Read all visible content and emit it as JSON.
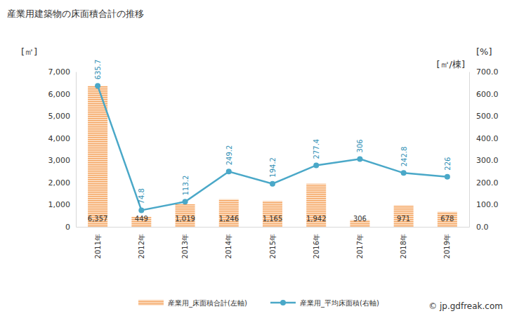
{
  "chart_data": {
    "type": "bar",
    "title": "産業用建築物の床面積合計の推移",
    "y_label": "[㎡]",
    "y2_labels": [
      "[%]",
      "[㎡/棟]"
    ],
    "annotations": [
      "© jp.gdfreak.com"
    ],
    "categories": [
      "2011年",
      "2012年",
      "2013年",
      "2014年",
      "2015年",
      "2016年",
      "2017年",
      "2018年",
      "2019年"
    ],
    "series": [
      {
        "name": "産業用_床面積合計(左軸)",
        "type": "bar",
        "color": "#f4a460",
        "axis": "y",
        "values": [
          6357,
          449,
          1019,
          1246,
          1165,
          1942,
          306,
          971,
          678
        ],
        "value_labels": [
          "6,357",
          "449",
          "1,019",
          "1,246",
          "1,165",
          "1,942",
          "306",
          "971",
          "678"
        ]
      },
      {
        "name": "産業用_平均床面積(右軸)",
        "type": "line",
        "color": "#4aa8c8",
        "axis": "y2",
        "marker": "circle",
        "values": [
          635.7,
          74.8,
          113.2,
          249.2,
          194.2,
          277.4,
          306,
          242.8,
          226
        ]
      }
    ],
    "ylim": [
      0,
      7000
    ],
    "yticks": [
      0,
      {
        "value": 1000,
        "label": "1,000"
      },
      {
        "value": 2000,
        "label": "2,000"
      },
      {
        "value": 3000,
        "label": "3,000"
      },
      {
        "value": 4000,
        "label": "4,000"
      },
      {
        "value": 5000,
        "label": "5,000"
      },
      {
        "value": 6000,
        "label": "6,000"
      },
      {
        "value": 7000,
        "label": "7,000"
      }
    ],
    "y2lim": [
      0,
      700
    ],
    "y2ticks": [
      {
        "value": 0,
        "label": "0.0"
      },
      {
        "value": 100,
        "label": "100.0"
      },
      {
        "value": 200,
        "label": "200.0"
      },
      {
        "value": 300,
        "label": "300.0"
      },
      {
        "value": 400,
        "label": "400.0"
      },
      {
        "value": 500,
        "label": "500.0"
      },
      {
        "value": 600,
        "label": "600.0"
      },
      {
        "value": 700,
        "label": "700.0"
      }
    ],
    "grid": false,
    "data_labels": true,
    "legend": "bottom"
  }
}
